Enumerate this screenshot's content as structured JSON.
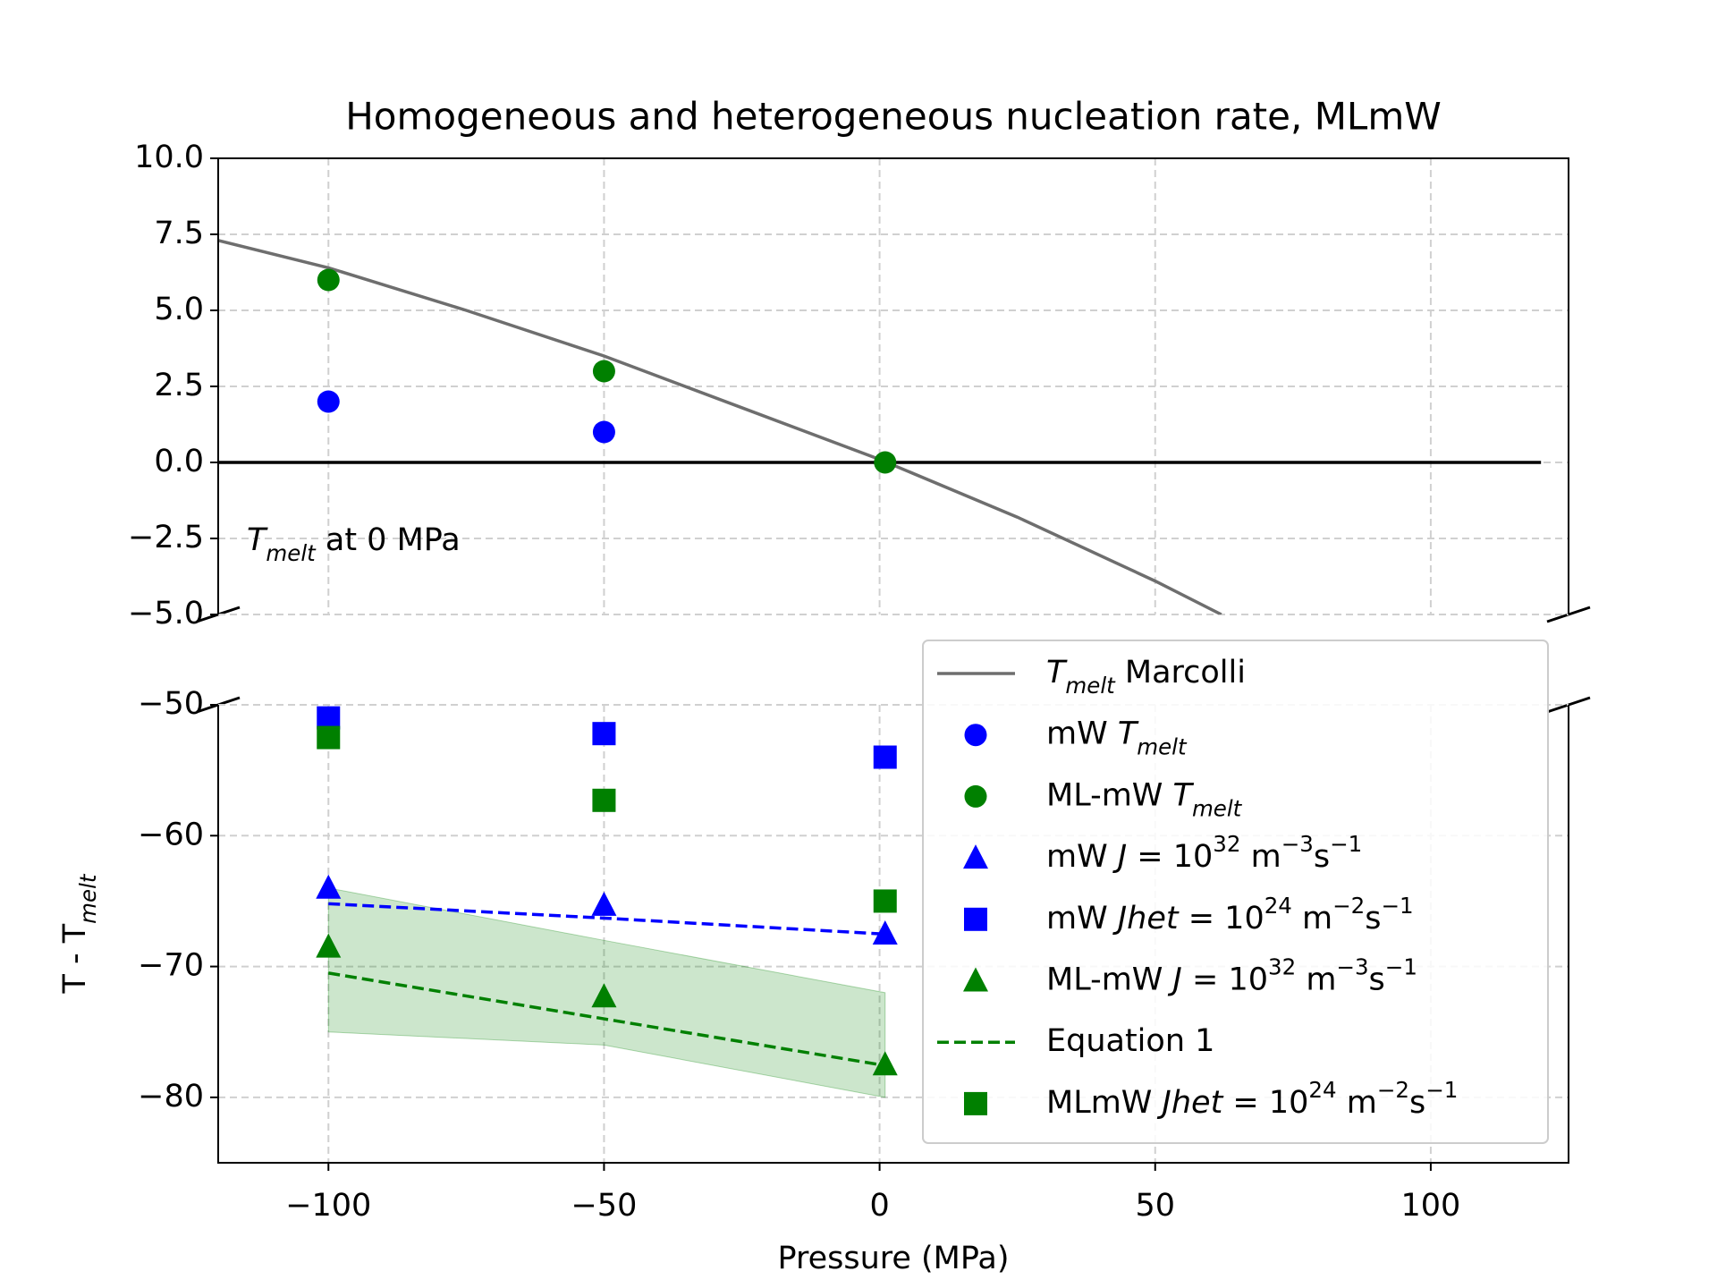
{
  "chart_data": [
    {
      "type": "line",
      "title": "Homogeneous and heterogeneous nucleation rate, MLmW",
      "xlim": [
        -120,
        125
      ],
      "xticks": [
        -100,
        -50,
        0,
        50,
        100
      ],
      "ylim": [
        -5,
        10
      ],
      "yticks": [
        {
          "value": -5,
          "label": "−5.0"
        },
        {
          "value": -2.5,
          "label": "−2.5"
        },
        {
          "value": 0,
          "label": "0.0"
        },
        {
          "value": 2.5,
          "label": "2.5"
        },
        {
          "value": 5,
          "label": "5.0"
        },
        {
          "value": 7.5,
          "label": "7.5"
        },
        {
          "value": 10,
          "label": "10.0"
        }
      ],
      "grid": true,
      "annotation": [
        {
          "text": "T",
          "style": "italic"
        },
        {
          "text": "melt",
          "style": "italic-sub"
        },
        {
          "text": " at 0 MPa"
        }
      ],
      "series": [
        {
          "name": [
            {
              "text": "T",
              "style": "italic"
            },
            {
              "text": "melt",
              "style": "italic-sub"
            },
            {
              "text": " Marcolli"
            }
          ],
          "color": "#6e6e6e",
          "linestyle": "-",
          "x": [
            -120,
            -100,
            -75,
            -50,
            -25,
            0,
            25,
            50,
            62
          ],
          "values": [
            7.3,
            6.4,
            5.0,
            3.5,
            1.8,
            0.1,
            -1.8,
            -3.9,
            -5.0
          ]
        },
        {
          "color": "#000000",
          "linestyle": "-",
          "x": [
            -120,
            120
          ],
          "values": [
            0,
            0
          ]
        },
        {
          "name": [
            {
              "text": "mW "
            },
            {
              "text": "T",
              "style": "italic"
            },
            {
              "text": "melt",
              "style": "italic-sub"
            }
          ],
          "color": "#0000ff",
          "marker": "o",
          "x": [
            -100,
            -50
          ],
          "values": [
            2,
            1
          ]
        },
        {
          "name": [
            {
              "text": "ML-mW "
            },
            {
              "text": "T",
              "style": "italic"
            },
            {
              "text": "melt",
              "style": "italic-sub"
            }
          ],
          "color": "#008000",
          "marker": "o",
          "x": [
            -100,
            -50,
            1
          ],
          "values": [
            6,
            3,
            0
          ]
        }
      ]
    },
    {
      "type": "line",
      "xlabel": "Pressure (MPa)",
      "ylabel": [
        {
          "text": "T - T"
        },
        {
          "text": "melt",
          "style": "italic-sub"
        }
      ],
      "xlim": [
        -120,
        125
      ],
      "xticks": [
        {
          "value": -100,
          "label": "−100"
        },
        {
          "value": -50,
          "label": "−50"
        },
        0,
        50,
        100
      ],
      "ylim": [
        -85,
        -50
      ],
      "yticks": [
        {
          "value": -80,
          "label": "−80"
        },
        {
          "value": -70,
          "label": "−70"
        },
        {
          "value": -60,
          "label": "−60"
        },
        {
          "value": -50,
          "label": "−50"
        }
      ],
      "grid": true,
      "series": [
        {
          "color": "#008000",
          "alpha": 0.2,
          "x": [
            -100,
            -50,
            1
          ],
          "upper": [
            -64,
            -68,
            -72
          ],
          "lower": [
            -75,
            -76,
            -80
          ]
        },
        {
          "color": "#0000ff",
          "linestyle": "--",
          "x": [
            -100,
            -50,
            0
          ],
          "values": [
            -65.2,
            -66.3,
            -67.5
          ]
        },
        {
          "name": [
            {
              "text": "mW "
            },
            {
              "text": "J",
              "style": "italic"
            },
            {
              "text": " = 10"
            },
            {
              "text": "32",
              "style": "sup"
            },
            {
              "text": " m"
            },
            {
              "text": "−3",
              "style": "sup"
            },
            {
              "text": "s"
            },
            {
              "text": "−1",
              "style": "sup"
            }
          ],
          "color": "#0000ff",
          "marker": "^",
          "x": [
            -100,
            -50,
            1
          ],
          "values": [
            -64,
            -65.3,
            -67.5
          ]
        },
        {
          "name": [
            {
              "text": "mW "
            },
            {
              "text": "Jhet",
              "style": "italic"
            },
            {
              "text": " = 10"
            },
            {
              "text": "24",
              "style": "sup"
            },
            {
              "text": " m"
            },
            {
              "text": "−2",
              "style": "sup"
            },
            {
              "text": "s"
            },
            {
              "text": "−1",
              "style": "sup"
            }
          ],
          "color": "#0000ff",
          "marker": "s",
          "x": [
            -100,
            -50,
            1
          ],
          "values": [
            -51,
            -52.2,
            -54
          ]
        },
        {
          "name": [
            {
              "text": "ML-mW "
            },
            {
              "text": "J",
              "style": "italic"
            },
            {
              "text": " = 10"
            },
            {
              "text": "32",
              "style": "sup"
            },
            {
              "text": " m"
            },
            {
              "text": "−3",
              "style": "sup"
            },
            {
              "text": "s"
            },
            {
              "text": "−1",
              "style": "sup"
            }
          ],
          "color": "#008000",
          "marker": "^",
          "x": [
            -100,
            -50,
            1
          ],
          "values": [
            -68.5,
            -72.3,
            -77.5
          ]
        },
        {
          "name": [
            {
              "text": "Equation 1"
            }
          ],
          "color": "#008000",
          "linestyle": "--",
          "x": [
            -100,
            -50,
            0
          ],
          "values": [
            -70.5,
            -74,
            -77.5
          ]
        },
        {
          "name": [
            {
              "text": "MLmW "
            },
            {
              "text": "Jhet",
              "style": "italic"
            },
            {
              "text": " = 10"
            },
            {
              "text": "24",
              "style": "sup"
            },
            {
              "text": " m"
            },
            {
              "text": "−2",
              "style": "sup"
            },
            {
              "text": "s"
            },
            {
              "text": "−1",
              "style": "sup"
            }
          ],
          "color": "#008000",
          "marker": "s",
          "x": [
            -100,
            -50,
            1
          ],
          "values": [
            -52.5,
            -57.3,
            -65
          ]
        }
      ]
    }
  ]
}
